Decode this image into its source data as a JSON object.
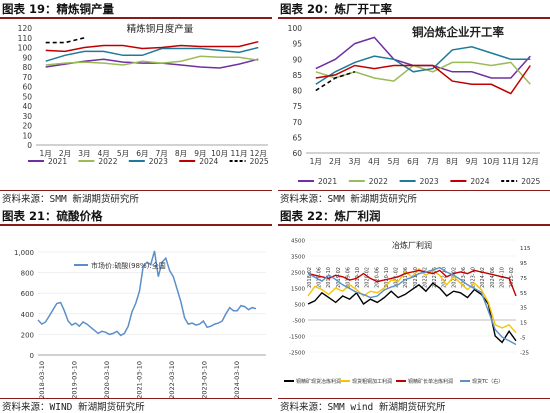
{
  "panels": [
    {
      "header": "图表 19：精炼铜产量",
      "source": "资料来源：SMM 新湖期货研究所",
      "chart_data": {
        "type": "line",
        "title": "精炼铜月度产量",
        "categories": [
          "1月",
          "2月",
          "3月",
          "4月",
          "5月",
          "6月",
          "7月",
          "8月",
          "9月",
          "10月",
          "11月",
          "12月"
        ],
        "ylim": [
          0,
          120
        ],
        "yticks": [
          0,
          10,
          20,
          30,
          40,
          50,
          60,
          70,
          80,
          90,
          100,
          110,
          120
        ],
        "legend_position": "bottom",
        "series": [
          {
            "name": "2021",
            "color": "#7030a0",
            "dash": false,
            "values": [
              80,
              83,
              86,
              88,
              85,
              84,
              84,
              82,
              80,
              79,
              83,
              88
            ]
          },
          {
            "name": "2022",
            "color": "#9bbb59",
            "dash": false,
            "values": [
              82,
              84,
              85,
              84,
              82,
              86,
              84,
              86,
              91,
              90,
              90,
              87
            ]
          },
          {
            "name": "2023",
            "color": "#1f7a9a",
            "dash": false,
            "values": [
              86,
              92,
              96,
              96,
              92,
              92,
              99,
              99,
              99,
              97,
              95,
              100
            ]
          },
          {
            "name": "2024",
            "color": "#c00000",
            "dash": false,
            "values": [
              97,
              96,
              100,
              102,
              102,
              99,
              100,
              102,
              101,
              101,
              101,
              106
            ]
          },
          {
            "name": "2025",
            "color": "#000000",
            "dash": true,
            "values": [
              105,
              105,
              110,
              null,
              null,
              null,
              null,
              null,
              null,
              null,
              null,
              null
            ]
          }
        ]
      }
    },
    {
      "header": "图表 20：炼厂开工率",
      "source": "资料来源：SMM 新湖期货研究所",
      "chart_data": {
        "type": "line",
        "title": "铜冶炼企业开工率",
        "categories": [
          "1月",
          "2月",
          "3月",
          "4月",
          "5月",
          "6月",
          "7月",
          "8月",
          "9月",
          "10月",
          "11月",
          "12月"
        ],
        "ylim": [
          60,
          100
        ],
        "yticks": [
          60,
          65,
          70,
          75,
          80,
          85,
          90,
          95,
          100
        ],
        "legend_position": "bottom",
        "series": [
          {
            "name": "2021",
            "color": "#7030a0",
            "dash": false,
            "values": [
              87,
              90,
              95,
              97,
              90,
              88,
              88,
              86,
              86,
              84,
              84,
              91
            ]
          },
          {
            "name": "2022",
            "color": "#9bbb59",
            "dash": false,
            "values": [
              86,
              84,
              86,
              84,
              83,
              88,
              86,
              89,
              89,
              88,
              89,
              82
            ]
          },
          {
            "name": "2023",
            "color": "#1f7a9a",
            "dash": false,
            "values": [
              82,
              86,
              89,
              91,
              90,
              86,
              87,
              93,
              94,
              92,
              90,
              90
            ]
          },
          {
            "name": "2024",
            "color": "#c00000",
            "dash": false,
            "values": [
              84,
              85,
              88,
              87,
              88,
              88,
              88,
              83,
              82,
              82,
              79,
              88
            ]
          },
          {
            "name": "2025",
            "color": "#000000",
            "dash": true,
            "values": [
              80,
              84,
              86,
              null,
              null,
              null,
              null,
              null,
              null,
              null,
              null,
              null
            ]
          }
        ]
      }
    },
    {
      "header": "图表 21：硫酸价格",
      "source": "资料来源：WIND 新湖期货研究所",
      "chart_data": {
        "type": "line",
        "title": "",
        "ylim": [
          0,
          1000
        ],
        "yticks": [
          0,
          200,
          400,
          600,
          800,
          1000
        ],
        "ytick_labels": [
          "0",
          "200",
          "400",
          "600",
          "800",
          "1,000"
        ],
        "xtick_labels": [
          "2018-03-10",
          "2019-03-10",
          "2020-03-10",
          "2021-03-10",
          "2022-03-10",
          "2023-03-10",
          "2024-03-10"
        ],
        "legend_position": "top",
        "series": [
          {
            "name": "市场价:硫酸(98%):全国",
            "color": "#5b8fc9",
            "dash": false,
            "values": [
              340,
              300,
              320,
              380,
              440,
              500,
              510,
              430,
              330,
              290,
              310,
              280,
              320,
              300,
              270,
              240,
              210,
              230,
              220,
              200,
              210,
              230,
              190,
              210,
              280,
              420,
              500,
              620,
              860,
              900,
              880,
              1010,
              760,
              900,
              940,
              820,
              760,
              640,
              520,
              360,
              300,
              310,
              290,
              300,
              330,
              270,
              280,
              300,
              310,
              330,
              400,
              460,
              430,
              430,
              480,
              470,
              440,
              460,
              450
            ]
          }
        ]
      }
    },
    {
      "header": "图表 22：炼厂利润",
      "source": "资料来源：SMM wind 新湖期货研究所",
      "chart_data": {
        "type": "line",
        "title": "冶炼厂利润",
        "ylim": [
          -2500,
          4500
        ],
        "yticks": [
          -2500,
          -1500,
          -500,
          500,
          1500,
          2500,
          3500,
          4500
        ],
        "y2lim": [
          -25,
          125
        ],
        "y2ticks": [
          -25,
          -5,
          15,
          35,
          55,
          75,
          95,
          115
        ],
        "xtick_labels": [
          "2018-02",
          "2018-06",
          "2018-10",
          "2019-02",
          "2019-06",
          "2019-10",
          "2020-02",
          "2020-06",
          "2020-10",
          "2021-02",
          "2021-06",
          "2021-10",
          "2022-02",
          "2022-06",
          "2022-10",
          "2023-02",
          "2023-06",
          "2023-10",
          "2024-02",
          "2024-06",
          "2024-10",
          "2025-02"
        ],
        "legend_position": "bottom",
        "series": [
          {
            "name": "铜精矿现货冶炼利润",
            "color": "#000000",
            "axis": "left",
            "values": [
              500,
              700,
              1200,
              900,
              600,
              1000,
              800,
              1200,
              500,
              800,
              600,
              900,
              1300,
              900,
              1100,
              1400,
              1700,
              1300,
              1800,
              1500,
              1000,
              1300,
              1200,
              900,
              1400,
              1100,
              500,
              -1500,
              -1900,
              -1200,
              -1800
            ]
          },
          {
            "name": "现货粗铜加工利润",
            "color": "#f5c400",
            "axis": "left",
            "values": [
              1000,
              1600,
              1400,
              1100,
              1500,
              1300,
              1700,
              1400,
              1000,
              1300,
              1200,
              1500,
              2000,
              1900,
              2500,
              2200,
              2700,
              2300,
              2600,
              2300,
              1700,
              2200,
              1800,
              1400,
              1800,
              1400,
              600,
              -800,
              -1000,
              -800,
              -1300
            ]
          },
          {
            "name": "铜精矿长单冶炼利润",
            "color": "#c00000",
            "axis": "left",
            "values": [
              2400,
              2300,
              2200,
              2100,
              2300,
              2200,
              2000,
              2100,
              2400,
              2100,
              1900,
              2000,
              2100,
              2200,
              2400,
              2500,
              2600,
              2500,
              2400,
              2600,
              2200,
              2400,
              2500,
              2400,
              2600,
              2500,
              2400,
              2300,
              2200,
              2100,
              1000
            ]
          },
          {
            "name": "现货TC（右）",
            "color": "#5b8fc9",
            "axis": "right",
            "values": [
              80,
              75,
              70,
              78,
              72,
              65,
              60,
              55,
              52,
              48,
              50,
              58,
              62,
              65,
              72,
              75,
              80,
              82,
              85,
              88,
              82,
              78,
              72,
              65,
              60,
              55,
              30,
              5,
              -5,
              -10,
              -15
            ]
          }
        ]
      }
    }
  ]
}
